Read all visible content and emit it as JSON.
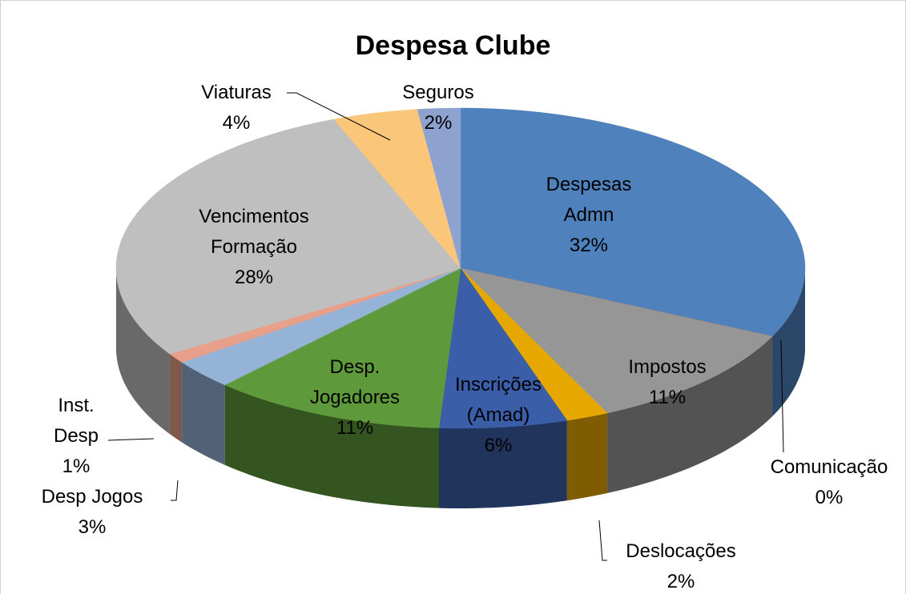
{
  "chart_data": {
    "type": "pie3d",
    "title": "Despesa Clube",
    "categories": [
      "Despesas Admn",
      "Comunicação",
      "Impostos",
      "Deslocações",
      "Inscrições (Amad)",
      "Desp. Jogadores",
      "Desp Jogos",
      "Inst. Desp",
      "Vencimentos Formação",
      "Viaturas",
      "Seguros"
    ],
    "values": [
      32,
      0,
      11,
      2,
      6,
      11,
      3,
      1,
      28,
      4,
      2
    ],
    "value_labels": [
      "32%",
      "0%",
      "11%",
      "2%",
      "6%",
      "11%",
      "3%",
      "1%",
      "28%",
      "4%",
      "2%"
    ],
    "colors": [
      "#4f81bd",
      "#e46c0a",
      "#969696",
      "#e6a800",
      "#3a5ea8",
      "#5e9a3b",
      "#95b3d7",
      "#e8a08a",
      "#bfbfbf",
      "#fac77a",
      "#8ea2d0"
    ]
  }
}
